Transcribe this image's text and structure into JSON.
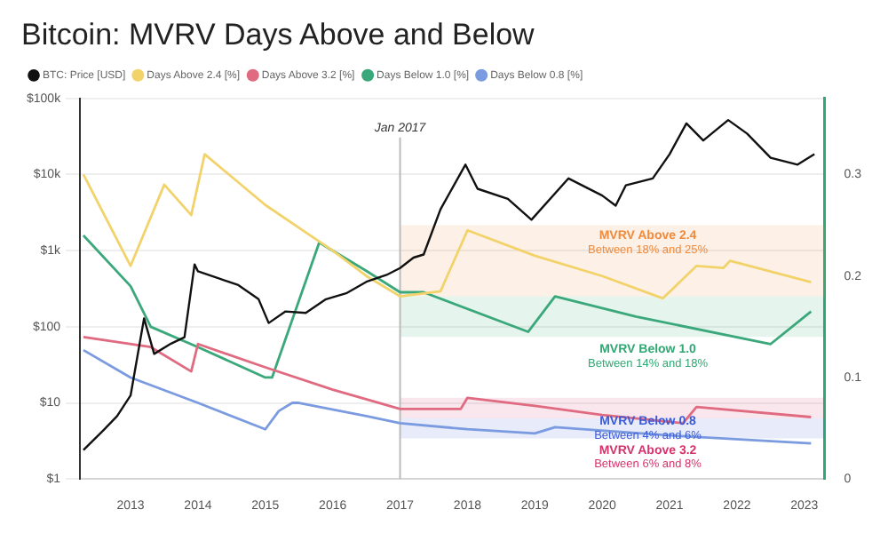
{
  "chart_data": {
    "type": "line",
    "title": "Bitcoin: MVRV Days Above and Below",
    "log": "y",
    "grid": "y",
    "legend": "top",
    "marker": "none",
    "xlim": [
      2012.25,
      2023.3
    ],
    "xticks": [
      2013,
      2014,
      2015,
      2016,
      2017,
      2018,
      2019,
      2020,
      2021,
      2022,
      2023
    ],
    "ylim": [
      1,
      100000
    ],
    "yticks": [
      {
        "value": 1,
        "label": "$1"
      },
      {
        "value": 10,
        "label": "$10"
      },
      {
        "value": 100,
        "label": "$100"
      },
      {
        "value": 1000,
        "label": "$1k"
      },
      {
        "value": 10000,
        "label": "$10k"
      },
      {
        "value": 100000,
        "label": "$100k"
      }
    ],
    "y2lim": [
      0,
      0.375
    ],
    "y2ticks": [
      0,
      0.1,
      0.2,
      0.3
    ],
    "series": [
      {
        "name": "BTC: Price [USD]",
        "color": "#111111",
        "x": [
          2012.3,
          2012.6,
          2012.8,
          2013,
          2013.2,
          2013.35,
          2013.6,
          2013.8,
          2013.95,
          2014,
          2014.3,
          2014.6,
          2014.9,
          2015.05,
          2015.3,
          2015.6,
          2015.9,
          2016.2,
          2016.5,
          2016.8,
          2017,
          2017.2,
          2017.35,
          2017.6,
          2017.97,
          2018.15,
          2018.6,
          2018.95,
          2019.5,
          2020,
          2020.2,
          2020.35,
          2020.75,
          2021,
          2021.25,
          2021.5,
          2021.87,
          2022.15,
          2022.5,
          2022.9,
          2023.15
        ],
        "values": [
          2.4,
          4.4,
          6.7,
          12.5,
          129,
          44,
          60,
          73,
          660,
          535,
          435,
          353,
          230,
          112,
          159,
          152,
          230,
          275,
          390,
          480,
          590,
          810,
          890,
          3500,
          13500,
          6500,
          4800,
          2550,
          8900,
          5300,
          3900,
          7200,
          8900,
          18500,
          47000,
          28000,
          52000,
          34500,
          16600,
          13500,
          18500
        ]
      },
      {
        "name": "Days Above 2.4 [%]",
        "color": "#f2d36b",
        "axis": "y2",
        "x": [
          2012.3,
          2013,
          2013.5,
          2013.9,
          2014.1,
          2015,
          2016,
          2016.5,
          2017,
          2017.6,
          2018,
          2019,
          2020,
          2020.9,
          2021.4,
          2021.8,
          2021.9,
          2023.1
        ],
        "values": [
          0.3,
          0.21,
          0.29,
          0.26,
          0.32,
          0.27,
          0.225,
          0.2,
          0.18,
          0.185,
          0.245,
          0.22,
          0.2,
          0.178,
          0.21,
          0.208,
          0.215,
          0.194
        ]
      },
      {
        "name": "Days Above 3.2 [%]",
        "color": "#e06a80",
        "axis": "y2",
        "x": [
          2012.3,
          2013.3,
          2013.9,
          2014,
          2015,
          2016,
          2017,
          2017.9,
          2018,
          2019,
          2020,
          2021.2,
          2021.4,
          2023.1
        ],
        "values": [
          0.14,
          0.13,
          0.106,
          0.133,
          0.11,
          0.088,
          0.069,
          0.069,
          0.08,
          0.072,
          0.063,
          0.055,
          0.071,
          0.061
        ]
      },
      {
        "name": "Days Below 1.0 [%]",
        "color": "#3aa87a",
        "axis": "y2",
        "x": [
          2012.3,
          2013,
          2013.3,
          2014,
          2015,
          2015.1,
          2015.8,
          2016.5,
          2017,
          2017.35,
          2018.9,
          2019.3,
          2020.5,
          2022.5,
          2023.1
        ],
        "values": [
          0.24,
          0.19,
          0.15,
          0.13,
          0.1,
          0.1,
          0.233,
          0.205,
          0.184,
          0.184,
          0.145,
          0.18,
          0.16,
          0.133,
          0.165
        ]
      },
      {
        "name": "Days Below 0.8 [%]",
        "color": "#7b9be0",
        "axis": "y2",
        "x": [
          2012.3,
          2013,
          2014,
          2015,
          2015.2,
          2015.4,
          2015.5,
          2016.5,
          2017,
          2018,
          2019,
          2019.3,
          2021,
          2023.1
        ],
        "values": [
          0.127,
          0.1,
          0.075,
          0.049,
          0.067,
          0.075,
          0.075,
          0.062,
          0.055,
          0.049,
          0.045,
          0.051,
          0.043,
          0.035
        ]
      }
    ],
    "ref_lines": [
      {
        "axis": "x",
        "value": 2017,
        "label": "Jan 2017",
        "color": "#bbbbbb"
      }
    ],
    "bands": [
      {
        "axis": "y2",
        "from": 0.18,
        "to": 0.25,
        "label": "MVRV Above 2.4",
        "color": "#f08a3c"
      },
      {
        "axis": "y2",
        "from": 0.14,
        "to": 0.18,
        "label": "MVRV Below 1.0",
        "color": "#2fa873"
      },
      {
        "axis": "y2",
        "from": 0.06,
        "to": 0.08,
        "label": "MVRV Above 3.2",
        "color": "#d6336c"
      },
      {
        "axis": "y2",
        "from": 0.04,
        "to": 0.06,
        "label": "MVRV Below 0.8",
        "color": "#3b5bd6"
      }
    ],
    "annotations": [
      "Between 18% and 25%",
      "Between 14% and 18%",
      "Between 6% and 8%",
      "Between 4% and 6%"
    ]
  }
}
